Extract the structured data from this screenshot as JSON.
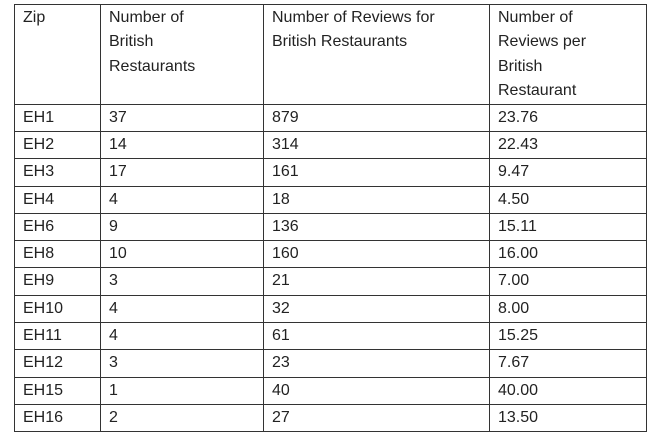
{
  "table": {
    "headers": [
      "Zip",
      "Number of British Restaurants",
      "Number of Reviews for British Restaurants",
      "Number of Reviews per British Restaurant"
    ],
    "header_lines": [
      [
        "Zip"
      ],
      [
        "Number of",
        "British",
        "Restaurants"
      ],
      [
        "Number of Reviews for",
        "British Restaurants"
      ],
      [
        "Number of",
        "Reviews per",
        "British",
        "Restaurant"
      ]
    ],
    "rows": [
      [
        "EH1",
        "37",
        "879",
        "23.76"
      ],
      [
        "EH2",
        "14",
        "314",
        "22.43"
      ],
      [
        "EH3",
        "17",
        "161",
        "9.47"
      ],
      [
        "EH4",
        "4",
        "18",
        "4.50"
      ],
      [
        "EH6",
        "9",
        "136",
        "15.11"
      ],
      [
        "EH8",
        "10",
        "160",
        "16.00"
      ],
      [
        "EH9",
        "3",
        "21",
        "7.00"
      ],
      [
        "EH10",
        "4",
        "32",
        "8.00"
      ],
      [
        "EH11",
        "4",
        "61",
        "15.25"
      ],
      [
        "EH12",
        "3",
        "23",
        "7.67"
      ],
      [
        "EH15",
        "1",
        "40",
        "40.00"
      ],
      [
        "EH16",
        "2",
        "27",
        "13.50"
      ]
    ]
  }
}
